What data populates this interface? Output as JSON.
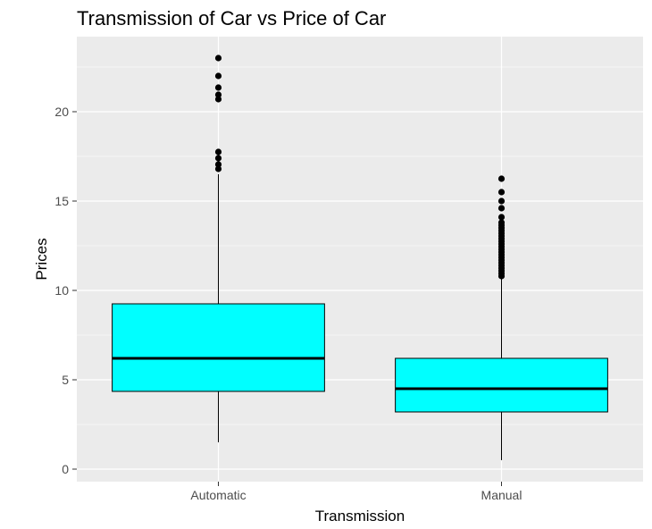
{
  "chart_data": {
    "type": "boxplot",
    "title": "Transmission of Car vs Price of Car",
    "xlabel": "Transmission",
    "ylabel": "Prices",
    "categories": [
      "Automatic",
      "Manual"
    ],
    "ylim": [
      -0.7,
      24.2
    ],
    "yticks": [
      0,
      5,
      10,
      15,
      20
    ],
    "grid": true,
    "box_fill": "#00ffff",
    "panel_background": "#ebebeb",
    "boxes": [
      {
        "name": "Automatic",
        "whisker_low": 1.5,
        "q1": 4.35,
        "median": 6.2,
        "q3": 9.25,
        "whisker_high": 16.5,
        "outliers": [
          16.8,
          17.05,
          17.4,
          17.75,
          20.7,
          20.95,
          21.35,
          22.0,
          23.0
        ]
      },
      {
        "name": "Manual",
        "whisker_low": 0.5,
        "q1": 3.2,
        "median": 4.5,
        "q3": 6.2,
        "whisker_high": 10.65,
        "outliers": [
          10.8,
          10.95,
          11.1,
          11.25,
          11.4,
          11.55,
          11.7,
          11.85,
          12.0,
          12.15,
          12.3,
          12.45,
          12.6,
          12.75,
          12.9,
          13.05,
          13.2,
          13.35,
          13.5,
          13.65,
          13.8,
          14.1,
          14.6,
          15.0,
          15.5,
          16.25
        ]
      }
    ]
  }
}
